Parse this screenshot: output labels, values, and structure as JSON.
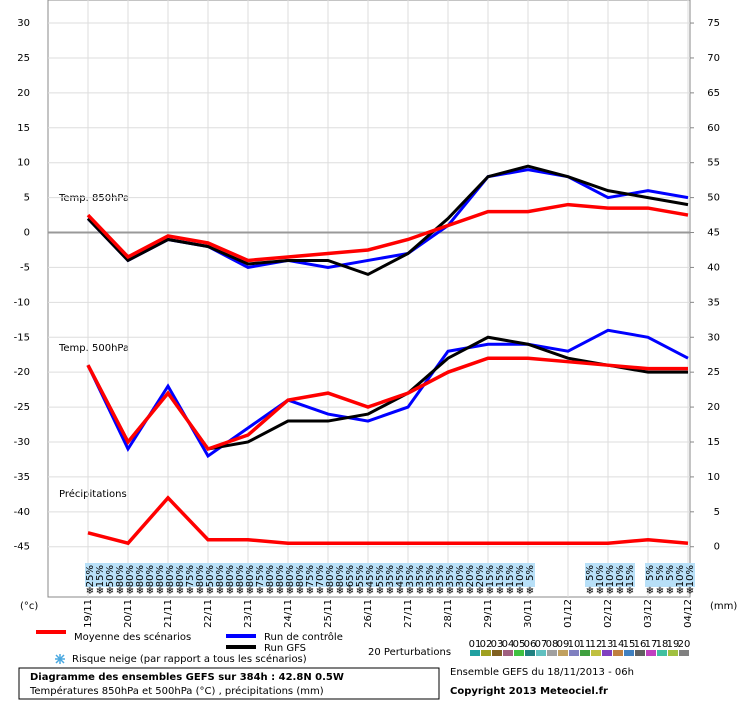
{
  "chart_data": {
    "type": "line",
    "annotations": [
      "Temp. 850hPa",
      "Temp. 500hPa",
      "Précipitations"
    ],
    "ylabel": "(°c)",
    "y2label": "(mm)",
    "categories": [
      "19/11",
      "20/11",
      "21/11",
      "22/11",
      "23/11",
      "24/11",
      "25/11",
      "26/11",
      "27/11",
      "28/11",
      "29/11",
      "30/11",
      "01/12",
      "02/12",
      "03/12",
      "04/12"
    ],
    "ylim": [
      -52.2,
      33.3
    ],
    "yticks": [
      30,
      25,
      20,
      15,
      10,
      5,
      0,
      -5,
      -10,
      -15,
      -20,
      -25,
      -30,
      -35,
      -40,
      -45
    ],
    "y2lim": [
      -7.2,
      78.3
    ],
    "y2ticks": [
      75,
      70,
      65,
      60,
      55,
      50,
      45,
      40,
      35,
      30,
      25,
      20,
      15,
      10,
      5,
      0
    ],
    "grid": true,
    "series": [
      {
        "name": "Moyenne des scénarios",
        "color": "#ff0000",
        "values": [
          2.5,
          -3.5,
          -0.5,
          -1.5,
          -4,
          -3.5,
          -3,
          -2.5,
          -1,
          1,
          3,
          3,
          4,
          3.5,
          3.5,
          2.5
        ]
      },
      {
        "name": "Run de contrôle",
        "color": "#0000ff",
        "values": [
          2,
          -4,
          -1,
          -2,
          -5,
          -4,
          -5,
          -4,
          -3,
          1,
          8,
          9,
          8,
          5,
          6,
          5
        ]
      },
      {
        "name": "Run GFS",
        "color": "#000000",
        "values": [
          2,
          -4,
          -1,
          -2,
          -4.5,
          -4,
          -4,
          -6,
          -3,
          2,
          8,
          9.5,
          8,
          6,
          5,
          4
        ]
      },
      {
        "name": "Moyenne des scénarios",
        "color": "#ff0000",
        "values": [
          -19,
          -30,
          -23,
          -31,
          -29,
          -24,
          -23,
          -25,
          -23,
          -20,
          -18,
          -18,
          -18.5,
          -19,
          -19.5,
          -19.5
        ]
      },
      {
        "name": "Run de contrôle",
        "color": "#0000ff",
        "values": [
          -19,
          -31,
          -22,
          -32,
          -28,
          -24,
          -26,
          -27,
          -25,
          -17,
          -16,
          -16,
          -17,
          -14,
          -15,
          -18
        ]
      },
      {
        "name": "Run GFS",
        "color": "#000000",
        "values": [
          -19,
          -30,
          -23,
          -31,
          -30,
          -27,
          -27,
          -26,
          -23,
          -18,
          -15,
          -16,
          -18,
          -19,
          -20,
          -20
        ]
      },
      {
        "name": "Moyenne des scénarios",
        "color": "#ff0000",
        "axis": "y2",
        "values": [
          2,
          0.5,
          7,
          1,
          1,
          0.5,
          0.5,
          0.5,
          0.5,
          0.5,
          0.5,
          0.5,
          0.5,
          0.5,
          1,
          0.5
        ]
      }
    ],
    "snow_risk": {
      "label": "Risque neige (par rapport a tous les scénarios)",
      "values": [
        25,
        15,
        50,
        80,
        80,
        80,
        80,
        80,
        80,
        80,
        75,
        80,
        50,
        80,
        80,
        80,
        80,
        75,
        80,
        80,
        80,
        80,
        75,
        70,
        80,
        80,
        65,
        55,
        45,
        55,
        35,
        45,
        35,
        35,
        35,
        35,
        35,
        30,
        20,
        20,
        15,
        15,
        15,
        10,
        5,
        null,
        null,
        null,
        null,
        null,
        5,
        10,
        10,
        10,
        15,
        null,
        5,
        5,
        5,
        10,
        10
      ],
      "value_labels": [
        "25%",
        "15%",
        "50%",
        "80%",
        "80%",
        "80%",
        "80%",
        "80%",
        "80%",
        "80%",
        "75%",
        "80%",
        "50%",
        "80%",
        "80%",
        "80%",
        "80%",
        "75%",
        "80%",
        "80%",
        "80%",
        "80%",
        "75%",
        "70%",
        "80%",
        "80%",
        "65%",
        "55%",
        "45%",
        "55%",
        "35%",
        "45%",
        "35%",
        "35%",
        "35%",
        "35%",
        "35%",
        "30%",
        "20%",
        "20%",
        "15%",
        "15%",
        "15%",
        "10%",
        "5%",
        null,
        null,
        null,
        null,
        null,
        "5%",
        "10%",
        "10%",
        "10%",
        "15%",
        null,
        "5%",
        "5%",
        "5%",
        "10%",
        "10%"
      ]
    },
    "perturbations": {
      "label": "20 Perturbations",
      "names": [
        "01",
        "02",
        "03",
        "04",
        "05",
        "06",
        "07",
        "08",
        "09",
        "10",
        "11",
        "12",
        "13",
        "14",
        "15",
        "16",
        "17",
        "18",
        "19",
        "20"
      ],
      "colors": [
        "#20a0a0",
        "#a0a020",
        "#806020",
        "#a06080",
        "#40c040",
        "#208080",
        "#60c0c0",
        "#a0a0a0",
        "#c0a060",
        "#8080c0",
        "#40a040",
        "#c0c040",
        "#8040c0",
        "#c08040",
        "#4080c0",
        "#606060",
        "#c040c0",
        "#40c0a0",
        "#a0c040",
        "#808080"
      ]
    },
    "footer": {
      "title": "Diagramme des ensembles GEFS sur 384h : 42.8N 0.5W",
      "subtitle": "Températures 850hPa et 500hPa (°C) , précipitations (mm)",
      "run": "Ensemble GEFS du 18/11/2013 - 06h",
      "copyright": "Copyright 2013 Meteociel.fr"
    }
  }
}
